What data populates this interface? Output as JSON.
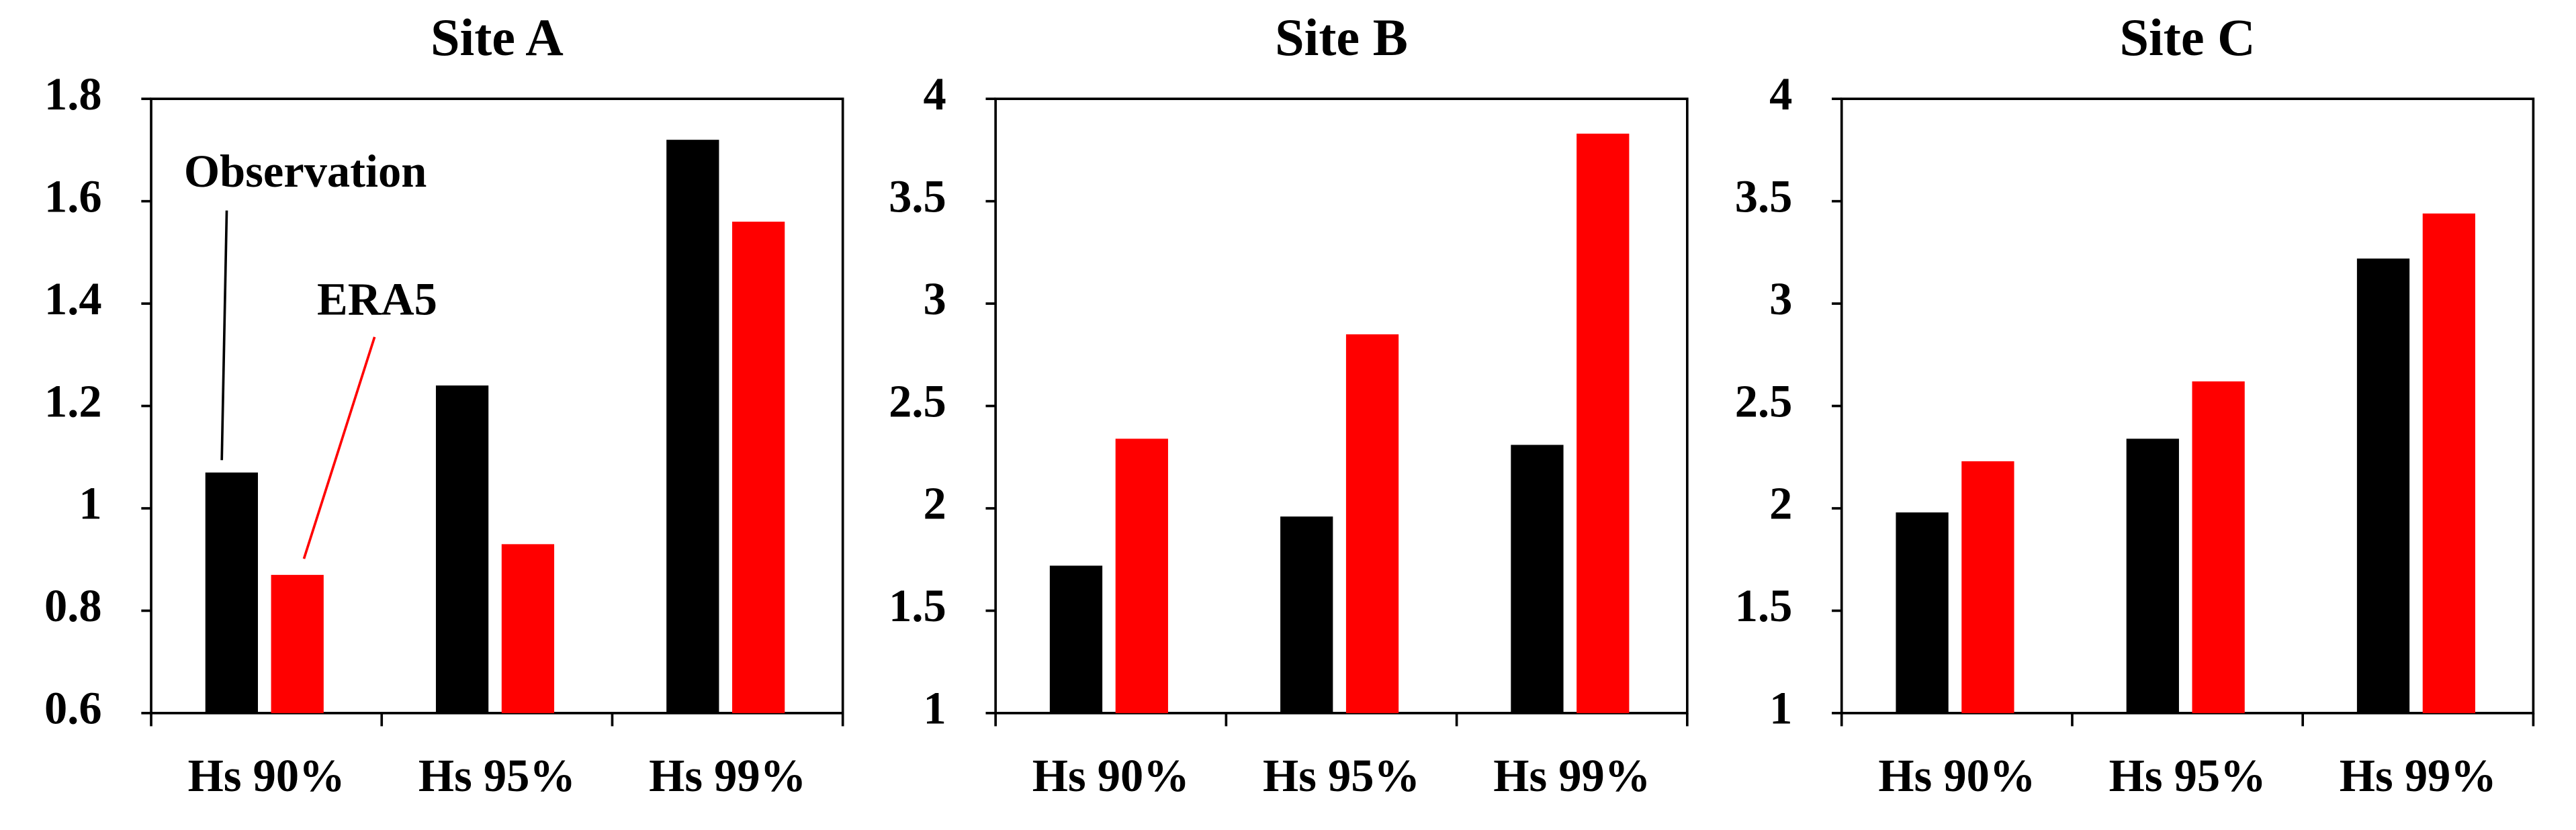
{
  "chart_data": [
    {
      "type": "bar",
      "title": "Site A",
      "categories": [
        "Hs 90%",
        "Hs 95%",
        "Hs 99%"
      ],
      "series": [
        {
          "name": "Observation",
          "color": "#000000",
          "values": [
            1.07,
            1.24,
            1.72
          ]
        },
        {
          "name": "ERA5",
          "color": "#ff0000",
          "values": [
            0.87,
            0.93,
            1.56
          ]
        }
      ],
      "ylim": [
        0.6,
        1.8
      ],
      "yticks": [
        0.6,
        0.8,
        1,
        1.2,
        1.4,
        1.6,
        1.8
      ]
    },
    {
      "type": "bar",
      "title": "Site B",
      "categories": [
        "Hs 90%",
        "Hs 95%",
        "Hs 99%"
      ],
      "series": [
        {
          "color": "#000000",
          "values": [
            1.72,
            1.96,
            2.31
          ]
        },
        {
          "color": "#ff0000",
          "values": [
            2.34,
            2.85,
            3.83
          ]
        }
      ],
      "ylim": [
        1,
        4
      ],
      "yticks": [
        1,
        1.5,
        2,
        2.5,
        3,
        3.5,
        4
      ]
    },
    {
      "type": "bar",
      "title": "Site C",
      "categories": [
        "Hs 90%",
        "Hs 95%",
        "Hs 99%"
      ],
      "series": [
        {
          "color": "#000000",
          "values": [
            1.98,
            2.34,
            3.22
          ]
        },
        {
          "color": "#ff0000",
          "values": [
            2.23,
            2.62,
            3.44
          ]
        }
      ],
      "ylim": [
        1,
        4
      ],
      "yticks": [
        1,
        1.5,
        2,
        2.5,
        3,
        3.5,
        4
      ]
    }
  ]
}
